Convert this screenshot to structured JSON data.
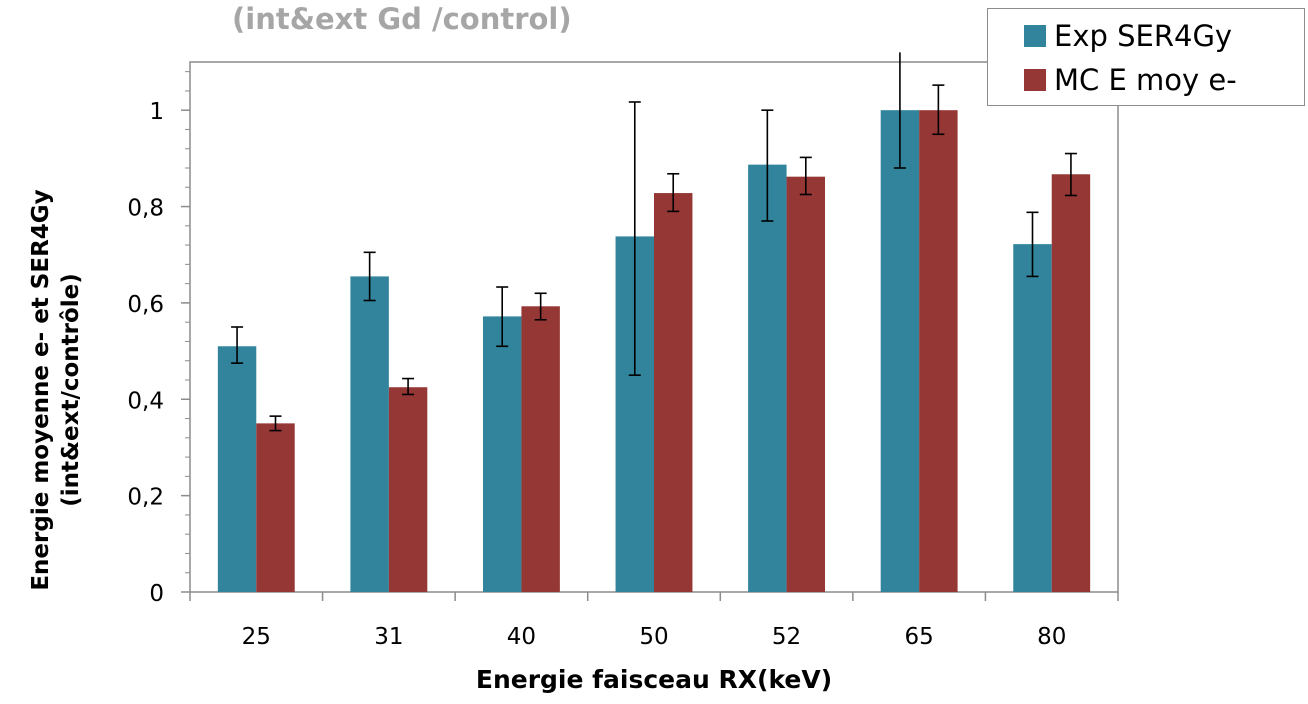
{
  "chart_data": {
    "type": "bar",
    "title": "(int&ext Gd /control)",
    "xlabel": "Energie faisceau RX(keV)",
    "ylabel_lines": [
      "Energie moyenne e- et SER4Gy",
      "(int&ext/contrôle)"
    ],
    "categories": [
      "25",
      "31",
      "40",
      "50",
      "52",
      "65",
      "80"
    ],
    "ylim": [
      0,
      1.1
    ],
    "yticks": [
      0,
      0.2,
      0.4,
      0.6,
      0.8,
      1
    ],
    "ytick_labels": [
      "0",
      "0,2",
      "0,4",
      "0,6",
      "0,8",
      "1"
    ],
    "grid": false,
    "legend_position": "top-right",
    "series": [
      {
        "name": "Exp SER4Gy",
        "color": "#31849b",
        "values": [
          0.51,
          0.655,
          0.572,
          0.738,
          0.887,
          1.0,
          0.722
        ],
        "error_low": [
          0.475,
          0.605,
          0.51,
          0.45,
          0.77,
          0.88,
          0.655
        ],
        "error_high": [
          0.55,
          0.705,
          0.633,
          1.017,
          1.0,
          1.12,
          0.788
        ]
      },
      {
        "name": "MC E moy e-",
        "color": "#953735",
        "values": [
          0.35,
          0.425,
          0.593,
          0.828,
          0.862,
          1.0,
          0.867
        ],
        "error_low": [
          0.335,
          0.41,
          0.565,
          0.79,
          0.825,
          0.95,
          0.823
        ],
        "error_high": [
          0.365,
          0.443,
          0.62,
          0.868,
          0.902,
          1.052,
          0.91
        ]
      }
    ]
  }
}
